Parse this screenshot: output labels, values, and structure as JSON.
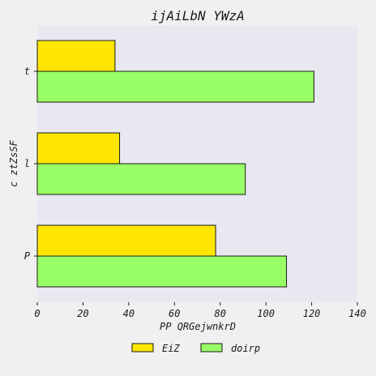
{
  "chart_data": {
    "type": "bar",
    "orientation": "horizontal",
    "title": "ijAiLbN YWzA",
    "xlabel": "PP QRGejwnkrD",
    "ylabel": "c ztZsSF",
    "categories": [
      "t",
      "l",
      "P"
    ],
    "series": [
      {
        "name": "EiZ",
        "color": "#ffe600",
        "values": [
          34,
          36,
          78
        ]
      },
      {
        "name": "doirp",
        "color": "#99ff66",
        "values": [
          121,
          91,
          109
        ]
      }
    ],
    "xlim": [
      0,
      140
    ],
    "xticks": [
      0,
      20,
      40,
      60,
      80,
      100,
      120,
      140
    ],
    "legend": "bottom-center",
    "grid": false,
    "plot_background": "#e8e8f0"
  }
}
